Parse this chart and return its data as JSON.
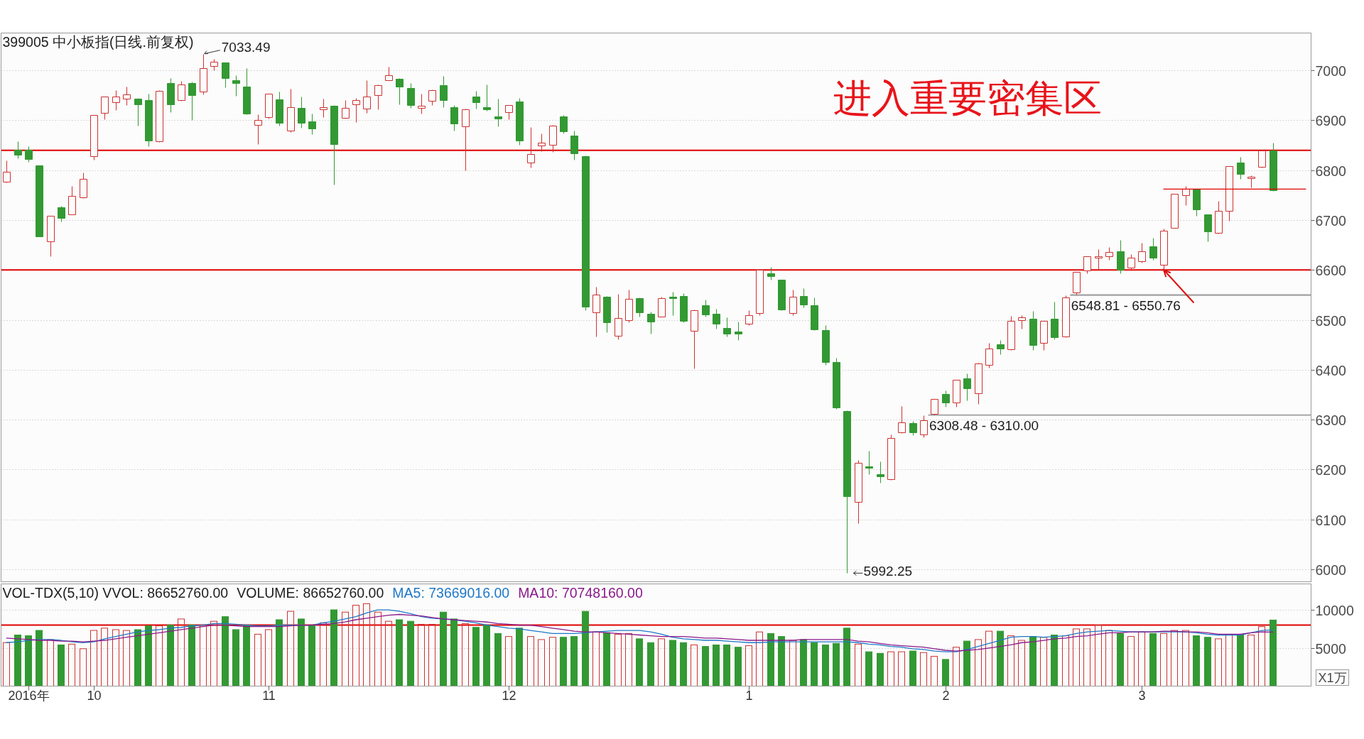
{
  "chart_data": [
    {
      "type": "candlestick",
      "title": "399005 中小板指(日线.前复权)",
      "categories": [
        null,
        null,
        null,
        null,
        null,
        null,
        null,
        null,
        null,
        null,
        null,
        null,
        null,
        null,
        null,
        null,
        null,
        null,
        null,
        null,
        null,
        null,
        null,
        null,
        null,
        null,
        null,
        null,
        null,
        null,
        null,
        null,
        null,
        null,
        null,
        null,
        null,
        null,
        null,
        null,
        null,
        null,
        null,
        null,
        null,
        null,
        null,
        null,
        null,
        null,
        null,
        null,
        null,
        null,
        null,
        null,
        null,
        null,
        null,
        null,
        null,
        null,
        null,
        null,
        null,
        null,
        null,
        null,
        null,
        null,
        null,
        null,
        null,
        null,
        null,
        null,
        null,
        null,
        null,
        null,
        null,
        null,
        null,
        null,
        null,
        null,
        null,
        null,
        null,
        null,
        null,
        null,
        null,
        null,
        null,
        null,
        null,
        null,
        null,
        null,
        null,
        null,
        null,
        null,
        null,
        null,
        null,
        null,
        null,
        null,
        null,
        null,
        null,
        null,
        null,
        null,
        null,
        null,
        null,
        null
      ],
      "ohlc": [
        [
          6777,
          6819,
          6776,
          6797
        ],
        [
          6841,
          6858,
          6824,
          6831
        ],
        [
          6841,
          6848,
          6817,
          6823
        ],
        [
          6809,
          6810,
          6667,
          6668
        ],
        [
          6658,
          6709,
          6628,
          6709
        ],
        [
          6725,
          6728,
          6697,
          6705
        ],
        [
          6712,
          6769,
          6711,
          6749
        ],
        [
          6746,
          6796,
          6744,
          6783
        ],
        [
          6828,
          6911,
          6821,
          6910
        ],
        [
          6915,
          6947,
          6902,
          6947
        ],
        [
          6936,
          6961,
          6920,
          6947
        ],
        [
          6944,
          6967,
          6930,
          6952
        ],
        [
          6943,
          6945,
          6890,
          6932
        ],
        [
          6940,
          6954,
          6848,
          6859
        ],
        [
          6858,
          6960,
          6856,
          6959
        ],
        [
          6974,
          6984,
          6917,
          6932
        ],
        [
          6940,
          6979,
          6939,
          6972
        ],
        [
          6975,
          6977,
          6901,
          6950
        ],
        [
          6958,
          7033.49,
          6952,
          7004
        ],
        [
          7009,
          7023,
          7001,
          7018
        ],
        [
          7016,
          7016,
          6966,
          6984
        ],
        [
          6981,
          6990,
          6949,
          6974
        ],
        [
          6968,
          7004,
          6912,
          6913
        ],
        [
          6891,
          6912,
          6853,
          6900
        ],
        [
          6906,
          6954,
          6904,
          6954
        ],
        [
          6942,
          6958,
          6890,
          6895
        ],
        [
          6879,
          6964,
          6876,
          6926
        ],
        [
          6925,
          6947,
          6885,
          6895
        ],
        [
          6898,
          6913,
          6872,
          6883
        ],
        [
          6922,
          6944,
          6906,
          6927
        ],
        [
          6929,
          6930,
          6771,
          6853
        ],
        [
          6905,
          6940,
          6904,
          6925
        ],
        [
          6932,
          6945,
          6897,
          6941
        ],
        [
          6923,
          6981,
          6915,
          6947
        ],
        [
          6951,
          6972,
          6922,
          6971
        ],
        [
          6981,
          7007,
          6980,
          6991
        ],
        [
          6983,
          6984,
          6932,
          6968
        ],
        [
          6965,
          6974,
          6925,
          6930
        ],
        [
          6925,
          6954,
          6914,
          6929
        ],
        [
          6939,
          6962,
          6930,
          6961
        ],
        [
          6971,
          6989,
          6927,
          6940
        ],
        [
          6927,
          6930,
          6879,
          6893
        ],
        [
          6888,
          6923,
          6799,
          6922
        ],
        [
          6947,
          6959,
          6924,
          6936
        ],
        [
          6926,
          6972,
          6919,
          6922
        ],
        [
          6908,
          6944,
          6888,
          6903
        ],
        [
          6917,
          6931,
          6902,
          6930
        ],
        [
          6937,
          6945,
          6851,
          6859
        ],
        [
          6815,
          6886,
          6805,
          6832
        ],
        [
          6849,
          6874,
          6838,
          6855
        ],
        [
          6851,
          6891,
          6836,
          6890
        ],
        [
          6908,
          6910,
          6874,
          6878
        ],
        [
          6869,
          6880,
          6821,
          6834
        ],
        [
          6828,
          6829,
          6520,
          6527
        ],
        [
          6515,
          6566,
          6466,
          6550
        ],
        [
          6547,
          6548,
          6475,
          6495
        ],
        [
          6468,
          6552,
          6461,
          6503
        ],
        [
          6500,
          6561,
          6495,
          6542
        ],
        [
          6543,
          6545,
          6507,
          6515
        ],
        [
          6512,
          6516,
          6472,
          6497
        ],
        [
          6507,
          6546,
          6507,
          6543
        ],
        [
          6547,
          6557,
          6510,
          6544
        ],
        [
          6548,
          6553,
          6495,
          6498
        ],
        [
          6478,
          6521,
          6403,
          6520
        ],
        [
          6529,
          6540,
          6507,
          6511
        ],
        [
          6512,
          6522,
          6482,
          6492
        ],
        [
          6484,
          6505,
          6466,
          6472
        ],
        [
          6476,
          6496,
          6459,
          6473
        ],
        [
          6492,
          6520,
          6490,
          6510
        ],
        [
          6513,
          6601,
          6509,
          6600
        ],
        [
          6593,
          6606,
          6581,
          6588
        ],
        [
          6580,
          6581,
          6520,
          6521
        ],
        [
          6513,
          6561,
          6509,
          6547
        ],
        [
          6548,
          6563,
          6525,
          6531
        ],
        [
          6529,
          6545,
          6479,
          6481
        ],
        [
          6479,
          6490,
          6410,
          6416
        ],
        [
          6415,
          6424,
          6322,
          6324
        ],
        [
          6317,
          6318,
          5992.25,
          6146
        ],
        [
          6135,
          6219,
          6093,
          6214
        ],
        [
          6206,
          6237,
          6191,
          6204
        ],
        [
          6190,
          6216,
          6174,
          6187
        ],
        [
          6180,
          6270,
          6179,
          6263
        ],
        [
          6274,
          6327,
          6273,
          6295
        ],
        [
          6293,
          6298,
          6269,
          6275
        ],
        [
          6270,
          6308.48,
          6265,
          6299
        ],
        [
          6311,
          6342,
          6310.0,
          6341
        ],
        [
          6352,
          6358,
          6326,
          6335
        ],
        [
          6335,
          6380,
          6326,
          6380
        ],
        [
          6383,
          6392,
          6338,
          6363
        ],
        [
          6353,
          6414,
          6332,
          6413
        ],
        [
          6410,
          6454,
          6404,
          6443
        ],
        [
          6451,
          6459,
          6431,
          6442
        ],
        [
          6441,
          6508,
          6440,
          6498
        ],
        [
          6500,
          6510,
          6482,
          6505
        ],
        [
          6502,
          6518,
          6439,
          6449
        ],
        [
          6454,
          6498,
          6440,
          6498
        ],
        [
          6502,
          6536,
          6461,
          6465
        ],
        [
          6466,
          6548.81,
          6465,
          6545
        ],
        [
          6555,
          6596,
          6550.76,
          6596
        ],
        [
          6599,
          6627,
          6593,
          6627
        ],
        [
          6625,
          6641,
          6600,
          6628
        ],
        [
          6627,
          6646,
          6621,
          6636
        ],
        [
          6638,
          6660,
          6594,
          6600
        ],
        [
          6604,
          6632,
          6602,
          6625
        ],
        [
          6618,
          6655,
          6614,
          6638
        ],
        [
          6648,
          6664,
          6620,
          6624
        ],
        [
          6611,
          6683,
          6602,
          6678
        ],
        [
          6685,
          6752,
          6684,
          6752
        ],
        [
          6750,
          6769,
          6730,
          6762
        ],
        [
          6762,
          6762,
          6708,
          6721
        ],
        [
          6711,
          6712,
          6658,
          6677
        ],
        [
          6674,
          6738,
          6673,
          6718
        ],
        [
          6719,
          6808,
          6699,
          6808
        ],
        [
          6816,
          6826,
          6782,
          6792
        ],
        [
          6784,
          6789,
          6765,
          6787
        ],
        [
          6807,
          6841,
          6806,
          6840
        ],
        [
          6840,
          6855,
          6758,
          6760
        ],
        null,
        null,
        null
      ],
      "colors": [
        "#cc3333",
        "#339933",
        "#339933",
        "#339933",
        "#cc3333",
        "#339933",
        "#cc3333",
        "#cc3333",
        "#cc3333",
        "#cc3333",
        "#cc3333",
        "#cc3333",
        "#339933",
        "#339933",
        "#cc3333",
        "#339933",
        "#cc3333",
        "#339933",
        "#cc3333",
        "#cc3333",
        "#339933",
        "#339933",
        "#339933",
        "#cc3333",
        "#cc3333",
        "#339933",
        "#cc3333",
        "#339933",
        "#339933",
        "#cc3333",
        "#339933",
        "#cc3333",
        "#cc3333",
        "#cc3333",
        "#cc3333",
        "#cc3333",
        "#339933",
        "#339933",
        "#cc3333",
        "#cc3333",
        "#339933",
        "#339933",
        "#cc3333",
        "#339933",
        "#339933",
        "#339933",
        "#cc3333",
        "#339933",
        "#cc3333",
        "#cc3333",
        "#cc3333",
        "#339933",
        "#339933",
        "#339933",
        "#cc3333",
        "#339933",
        "#cc3333",
        "#cc3333",
        "#339933",
        "#339933",
        "#cc3333",
        "#339933",
        "#339933",
        "#cc3333",
        "#339933",
        "#339933",
        "#339933",
        "#339933",
        "#cc3333",
        "#cc3333",
        "#339933",
        "#339933",
        "#cc3333",
        "#339933",
        "#339933",
        "#339933",
        "#339933",
        "#339933",
        "#cc3333",
        "#339933",
        "#339933",
        "#cc3333",
        "#cc3333",
        "#339933",
        "#cc3333",
        "#cc3333",
        "#339933",
        "#cc3333",
        "#339933",
        "#cc3333",
        "#cc3333",
        "#339933",
        "#cc3333",
        "#cc3333",
        "#339933",
        "#cc3333",
        "#339933",
        "#cc3333",
        "#cc3333",
        "#cc3333",
        "#cc3333",
        "#cc3333",
        "#339933",
        "#cc3333",
        "#cc3333",
        "#339933",
        "#cc3333",
        "#cc3333",
        "#cc3333",
        "#339933",
        "#339933",
        "#cc3333",
        "#cc3333",
        "#339933",
        "#cc3333",
        "#cc3333",
        "#339933",
        null,
        null,
        null
      ],
      "series": [
        {
          "type": "line",
          "color": "#e00000",
          "values": [
            null,
            null,
            null,
            null,
            null,
            null,
            null,
            null,
            null,
            null,
            null,
            null,
            null,
            null,
            null,
            null,
            null,
            null,
            null,
            null,
            null,
            null,
            null,
            null,
            null,
            null,
            null,
            null,
            null,
            null,
            null,
            null,
            null,
            null,
            null,
            null,
            null,
            null,
            null,
            null,
            null,
            null,
            null,
            null,
            null,
            null,
            null,
            null,
            null,
            null,
            null,
            null,
            null,
            null,
            null,
            null,
            null,
            null,
            null,
            null,
            null,
            null,
            null,
            null,
            null,
            null,
            null,
            null,
            null,
            null,
            null,
            null,
            null,
            null,
            null,
            null,
            null,
            null,
            null,
            null,
            null,
            null,
            null,
            null,
            null,
            null,
            null,
            null,
            null,
            null,
            null,
            null,
            null,
            null,
            null,
            null,
            null,
            null,
            null,
            null,
            null,
            null,
            null,
            null,
            null,
            null,
            6762,
            6762,
            6762,
            6762,
            6762,
            6762,
            6762,
            6762,
            6762,
            6762,
            6762,
            6762,
            6762,
            6762
          ]
        }
      ],
      "ylim": [
        5975,
        7075
      ],
      "yticks": [
        6000,
        6100,
        6200,
        6300,
        6400,
        6500,
        6600,
        6700,
        6800,
        6900,
        7000
      ],
      "grid": "y",
      "tick_labels": "y",
      "ref_lines": [
        {
          "axis": "y",
          "value": 6840,
          "color": "#e00000"
        },
        {
          "axis": "y",
          "value": 6600,
          "color": "#e00000"
        }
      ],
      "bands": [
        {
          "axis": "y",
          "from": 6308.48,
          "to": 6310.0,
          "label": "6308.48 - 6310.00",
          "color": "#a0a0a0"
        },
        {
          "axis": "y",
          "from": 6548.81,
          "to": 6550.76,
          "label": "6548.81 - 6550.76",
          "color": "#a0a0a0"
        }
      ],
      "annotations": [
        "进入重要密集区",
        "7033.49",
        "5992.25"
      ]
    },
    {
      "type": "bar",
      "title": "VOL-TDX(5,10) VVOL: 86652760.00",
      "categories": [
        null,
        null,
        "2016年",
        null,
        null,
        null,
        null,
        null,
        "10",
        null,
        null,
        null,
        null,
        null,
        null,
        null,
        null,
        null,
        null,
        null,
        null,
        null,
        null,
        null,
        "11",
        null,
        null,
        null,
        null,
        null,
        null,
        null,
        null,
        null,
        null,
        null,
        null,
        null,
        null,
        null,
        null,
        null,
        null,
        null,
        null,
        null,
        "12",
        null,
        null,
        null,
        null,
        null,
        null,
        null,
        null,
        null,
        null,
        null,
        null,
        null,
        null,
        null,
        null,
        null,
        null,
        null,
        null,
        null,
        "1",
        null,
        null,
        null,
        null,
        null,
        null,
        null,
        null,
        null,
        null,
        null,
        null,
        null,
        null,
        null,
        null,
        null,
        "2",
        null,
        null,
        null,
        null,
        null,
        null,
        null,
        null,
        null,
        null,
        null,
        null,
        null,
        null,
        null,
        null,
        null,
        "3",
        null,
        null,
        null,
        null,
        null,
        null,
        null,
        null,
        null,
        null,
        null,
        null,
        null,
        null,
        null
      ],
      "series": [
        {
          "name": "VOLUME: 86652760.00",
          "type": "bar",
          "values": [
            5700,
            6700,
            6600,
            7300,
            6100,
            5400,
            5500,
            4900,
            7300,
            7600,
            7400,
            7300,
            7400,
            7900,
            7900,
            8000,
            8800,
            8000,
            8000,
            8500,
            9100,
            7400,
            8000,
            6800,
            7400,
            8700,
            9800,
            8800,
            7900,
            8300,
            10000,
            9700,
            10600,
            10800,
            9700,
            8500,
            8700,
            8500,
            8100,
            8100,
            9700,
            8800,
            8200,
            7700,
            8000,
            6900,
            6500,
            7600,
            6500,
            6100,
            6400,
            6400,
            6500,
            9800,
            7100,
            7000,
            6800,
            6900,
            6200,
            5700,
            6200,
            6000,
            5700,
            5400,
            5200,
            5400,
            5400,
            5100,
            5300,
            7100,
            6900,
            6500,
            6000,
            6100,
            5700,
            5400,
            5600,
            7600,
            5500,
            4500,
            4300,
            4500,
            4500,
            4600,
            4400,
            3900,
            3500,
            5100,
            5900,
            6100,
            7200,
            7200,
            6600,
            6000,
            6500,
            6400,
            6700,
            6600,
            7500,
            7500,
            8000,
            7300,
            6900,
            6500,
            7100,
            6900,
            6900,
            7300,
            7300,
            6600,
            6400,
            6200,
            6700,
            6700,
            6700,
            7800,
            8665.276,
            null,
            null,
            null
          ],
          "colors": [
            "#cc3333",
            "#339933",
            "#339933",
            "#339933",
            "#cc3333",
            "#339933",
            "#cc3333",
            "#cc3333",
            "#cc3333",
            "#cc3333",
            "#cc3333",
            "#cc3333",
            "#339933",
            "#339933",
            "#cc3333",
            "#339933",
            "#cc3333",
            "#339933",
            "#cc3333",
            "#cc3333",
            "#339933",
            "#339933",
            "#339933",
            "#cc3333",
            "#cc3333",
            "#339933",
            "#cc3333",
            "#339933",
            "#339933",
            "#cc3333",
            "#339933",
            "#cc3333",
            "#cc3333",
            "#cc3333",
            "#cc3333",
            "#cc3333",
            "#339933",
            "#339933",
            "#cc3333",
            "#cc3333",
            "#339933",
            "#339933",
            "#cc3333",
            "#339933",
            "#339933",
            "#339933",
            "#cc3333",
            "#339933",
            "#cc3333",
            "#cc3333",
            "#cc3333",
            "#339933",
            "#339933",
            "#339933",
            "#cc3333",
            "#339933",
            "#cc3333",
            "#cc3333",
            "#339933",
            "#339933",
            "#cc3333",
            "#339933",
            "#339933",
            "#cc3333",
            "#339933",
            "#339933",
            "#339933",
            "#339933",
            "#cc3333",
            "#cc3333",
            "#339933",
            "#339933",
            "#cc3333",
            "#339933",
            "#339933",
            "#339933",
            "#339933",
            "#339933",
            "#cc3333",
            "#339933",
            "#339933",
            "#cc3333",
            "#cc3333",
            "#339933",
            "#cc3333",
            "#cc3333",
            "#339933",
            "#cc3333",
            "#339933",
            "#cc3333",
            "#cc3333",
            "#339933",
            "#cc3333",
            "#cc3333",
            "#339933",
            "#cc3333",
            "#339933",
            "#cc3333",
            "#cc3333",
            "#cc3333",
            "#cc3333",
            "#cc3333",
            "#339933",
            "#cc3333",
            "#cc3333",
            "#339933",
            "#cc3333",
            "#cc3333",
            "#cc3333",
            "#339933",
            "#339933",
            "#cc3333",
            "#cc3333",
            "#339933",
            "#cc3333",
            "#cc3333",
            "#339933",
            null,
            null,
            null
          ]
        },
        {
          "name": "MA5: 73669016.00",
          "type": "line",
          "color": "#1f78c8",
          "values": [
            5700,
            5800,
            6000,
            6100,
            6100,
            6000,
            5800,
            5700,
            5800,
            6200,
            6500,
            6800,
            7100,
            7300,
            7400,
            7600,
            7700,
            7900,
            8000,
            8200,
            8200,
            8100,
            8000,
            7900,
            7900,
            8000,
            8000,
            8000,
            8000,
            8300,
            8500,
            8800,
            9100,
            9600,
            10000,
            10000,
            9800,
            9500,
            9100,
            8900,
            8800,
            8700,
            8500,
            8300,
            8000,
            7800,
            7600,
            7500,
            7300,
            7100,
            6900,
            6900,
            6900,
            7000,
            7100,
            7200,
            7300,
            7300,
            7300,
            7100,
            6800,
            6400,
            6200,
            6100,
            6000,
            6000,
            5900,
            5800,
            5700,
            5700,
            5800,
            5800,
            5800,
            5800,
            5800,
            5800,
            5800,
            5800,
            5700,
            5500,
            5400,
            5200,
            5100,
            4900,
            4800,
            4600,
            4500,
            4500,
            4800,
            5200,
            5600,
            6000,
            6400,
            6500,
            6500,
            6400,
            6500,
            6600,
            6900,
            7100,
            7200,
            7300,
            7200,
            7100,
            7100,
            7100,
            7100,
            7100,
            7100,
            7000,
            6800,
            6700,
            6700,
            6700,
            7000,
            7300,
            7366.9016,
            null,
            null,
            null
          ]
        },
        {
          "name": "MA10: 70748160.00",
          "type": "line",
          "color": "#8b1a8b",
          "values": [
            6300,
            6200,
            6100,
            6000,
            6000,
            5900,
            5900,
            5800,
            5900,
            6000,
            6200,
            6400,
            6600,
            6800,
            7000,
            7200,
            7400,
            7600,
            7800,
            8000,
            8000,
            7900,
            7800,
            7800,
            7800,
            7800,
            7900,
            8000,
            8000,
            8100,
            8200,
            8400,
            8700,
            8900,
            9100,
            9300,
            9400,
            9300,
            9200,
            9000,
            8800,
            8700,
            8600,
            8500,
            8400,
            8200,
            8100,
            8000,
            8000,
            7800,
            7600,
            7400,
            7200,
            7100,
            7100,
            7000,
            6900,
            6800,
            6700,
            6600,
            6500,
            6500,
            6500,
            6400,
            6300,
            6300,
            6200,
            6100,
            6000,
            6000,
            6000,
            6000,
            6000,
            6100,
            6100,
            6100,
            6100,
            6100,
            5900,
            5800,
            5600,
            5400,
            5300,
            5200,
            5100,
            4900,
            4700,
            4600,
            4700,
            4800,
            5000,
            5200,
            5400,
            5700,
            5800,
            6000,
            6200,
            6300,
            6500,
            6600,
            6800,
            7000,
            7000,
            7100,
            7100,
            7100,
            7200,
            7200,
            7100,
            7100,
            7000,
            6800,
            6800,
            6800,
            7000,
            7100,
            7074.816,
            null,
            null,
            null
          ]
        }
      ],
      "ylim": [
        0,
        13400
      ],
      "yticks": [
        5000,
        10000
      ],
      "ylabel": "X1万",
      "grid": "y",
      "legend": "top left",
      "ref_lines": [
        {
          "axis": "y",
          "value": 8000,
          "color": "#e00000"
        }
      ]
    }
  ]
}
